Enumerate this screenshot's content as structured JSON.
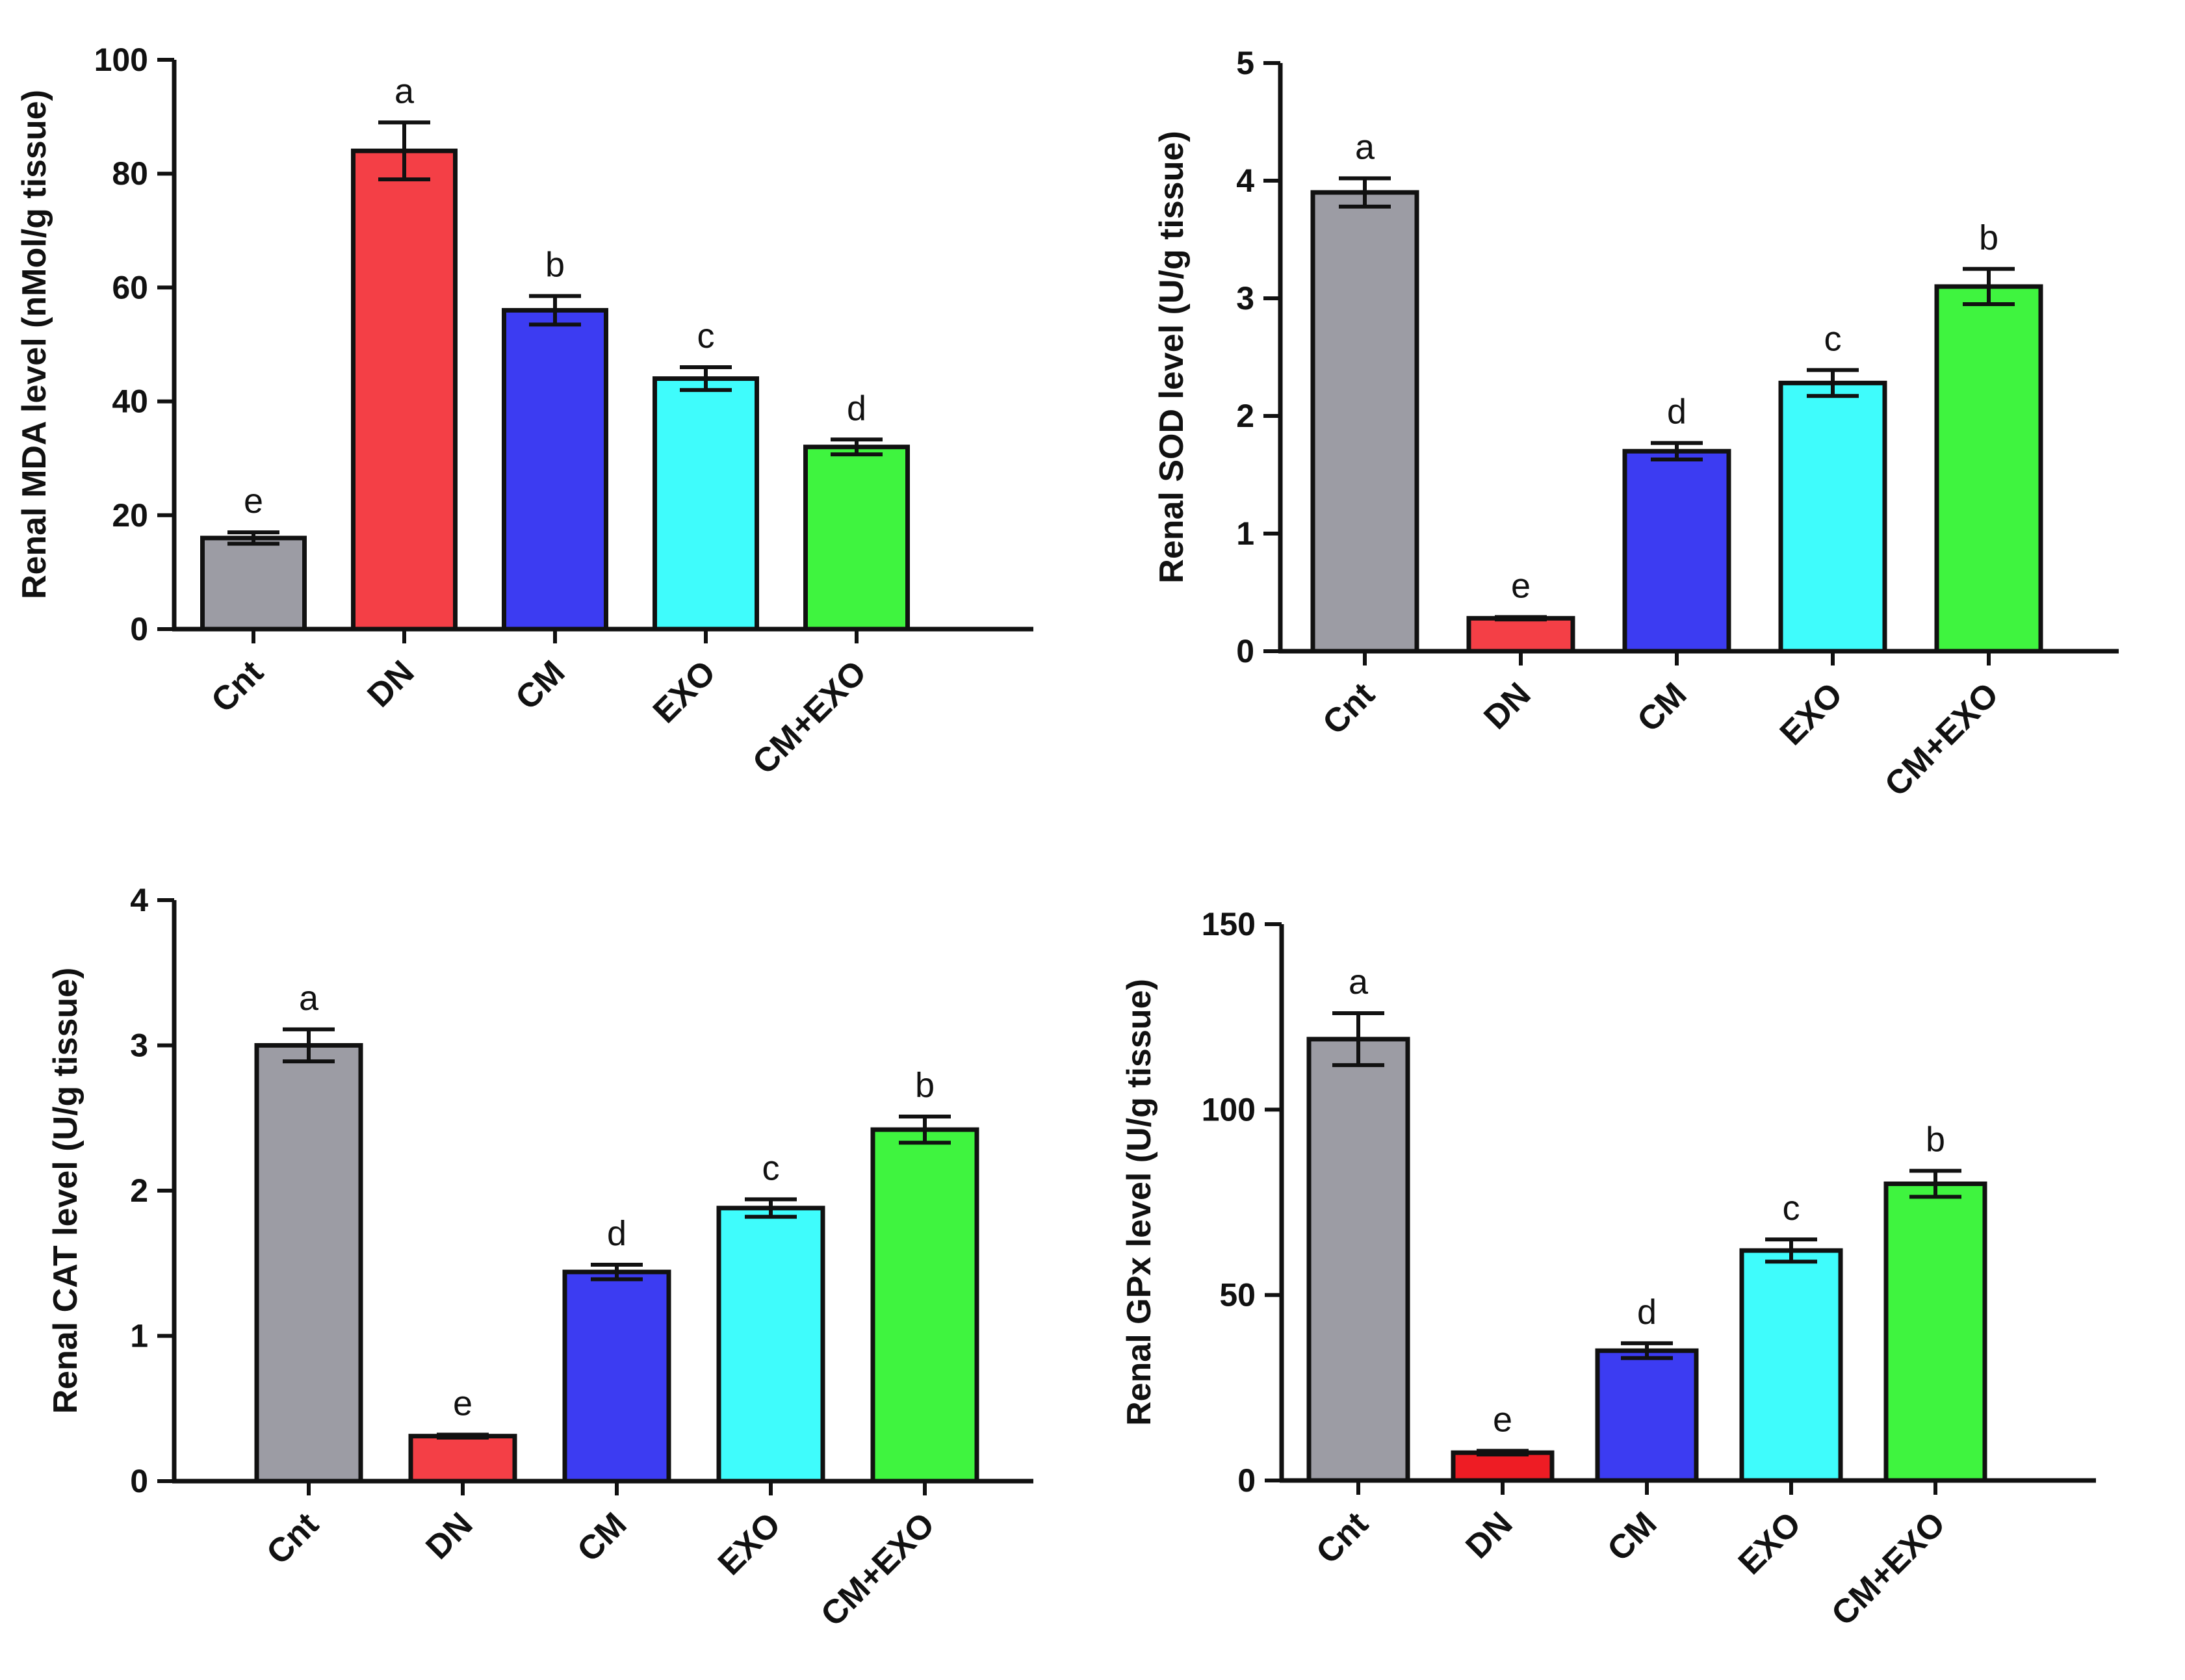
{
  "chart_data": [
    {
      "type": "bar",
      "title": "",
      "ylabel": "Renal MDA level (nMol/g tissue)",
      "xlabel": "",
      "categories": [
        "Cnt",
        "DN",
        "CM",
        "EXO",
        "CM+EXO"
      ],
      "values": [
        16,
        84,
        56,
        44,
        32
      ],
      "errors": [
        1,
        5,
        2.5,
        2,
        1.3
      ],
      "significance": [
        "e",
        "a",
        "b",
        "c",
        "d"
      ],
      "colors": [
        "#9c9ca4",
        "#f43f46",
        "#3c3cf2",
        "#3ffcfc",
        "#3ff43f"
      ],
      "ylim": [
        0,
        100
      ],
      "yticks": [
        0,
        20,
        40,
        60,
        80,
        100
      ],
      "ytick_labels": [
        "0",
        "20",
        "40",
        "60",
        "80",
        "100"
      ]
    },
    {
      "type": "bar",
      "title": "",
      "ylabel": "Renal SOD level (U/g tissue)",
      "xlabel": "",
      "categories": [
        "Cnt",
        "DN",
        "CM",
        "EXO",
        "CM+EXO"
      ],
      "values": [
        3.9,
        0.28,
        1.7,
        2.28,
        3.1
      ],
      "errors": [
        0.12,
        0.01,
        0.07,
        0.11,
        0.15
      ],
      "significance": [
        "a",
        "e",
        "d",
        "c",
        "b"
      ],
      "colors": [
        "#9c9ca4",
        "#f43f46",
        "#3c3cf2",
        "#3ffcfc",
        "#3ff43f"
      ],
      "ylim": [
        0,
        5
      ],
      "yticks": [
        0,
        1,
        2,
        3,
        4,
        5
      ],
      "ytick_labels": [
        "0",
        "1",
        "2",
        "3",
        "4",
        "5"
      ]
    },
    {
      "type": "bar",
      "title": "",
      "ylabel": "Renal CAT level (U/g tissue)",
      "xlabel": "",
      "categories": [
        "Cnt",
        "DN",
        "CM",
        "EXO",
        "CM+EXO"
      ],
      "values": [
        3.0,
        0.31,
        1.44,
        1.88,
        2.42
      ],
      "errors": [
        0.11,
        0.01,
        0.05,
        0.06,
        0.09
      ],
      "significance": [
        "a",
        "e",
        "d",
        "c",
        "b"
      ],
      "colors": [
        "#9c9ca4",
        "#f43f46",
        "#3c3cf2",
        "#3ffcfc",
        "#3ff43f"
      ],
      "ylim": [
        0,
        4
      ],
      "yticks": [
        0,
        1,
        2,
        3,
        4
      ],
      "ytick_labels": [
        "0",
        "1",
        "2",
        "3",
        "4"
      ]
    },
    {
      "type": "bar",
      "title": "",
      "ylabel": "Renal GPx level (U/g tissue)",
      "xlabel": "",
      "categories": [
        "Cnt",
        "DN",
        "CM",
        "EXO",
        "CM+EXO"
      ],
      "values": [
        119,
        7.5,
        35,
        62,
        80
      ],
      "errors": [
        7,
        0.5,
        2,
        3,
        3.5
      ],
      "significance": [
        "a",
        "e",
        "d",
        "c",
        "b"
      ],
      "colors": [
        "#9c9ca4",
        "#ee1c24",
        "#3c3cf2",
        "#3ffcfc",
        "#3ff43f"
      ],
      "ylim": [
        0,
        150
      ],
      "yticks": [
        0,
        50,
        100,
        150
      ],
      "ytick_labels": [
        "0",
        "50",
        "100",
        "150"
      ]
    }
  ]
}
